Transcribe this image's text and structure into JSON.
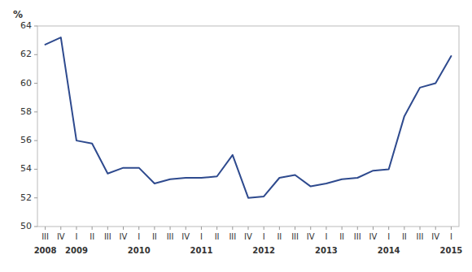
{
  "chart_data": {
    "type": "line",
    "ylabel": "%",
    "categories": [
      "III",
      "IV",
      "I",
      "II",
      "III",
      "IV",
      "I",
      "II",
      "III",
      "IV",
      "I",
      "II",
      "III",
      "IV",
      "I",
      "II",
      "III",
      "IV",
      "I",
      "II",
      "III",
      "IV",
      "I",
      "II",
      "III",
      "IV",
      "I"
    ],
    "values": [
      62.7,
      63.2,
      56.0,
      55.8,
      53.7,
      54.1,
      54.1,
      53.0,
      53.3,
      53.4,
      53.4,
      53.5,
      55.0,
      52.0,
      52.1,
      53.4,
      53.6,
      52.8,
      53.0,
      53.3,
      53.4,
      53.9,
      54.0,
      57.7,
      59.7,
      60.0,
      61.9
    ],
    "color": "#2e4a8e",
    "ylim": [
      50,
      64
    ],
    "yticks": [
      50,
      52,
      54,
      56,
      58,
      60,
      62,
      64
    ],
    "grid": false,
    "annotations": [
      {
        "text": "2008",
        "x": 0
      },
      {
        "text": "2009",
        "x": 2
      },
      {
        "text": "2010",
        "x": 6
      },
      {
        "text": "2011",
        "x": 10
      },
      {
        "text": "2012",
        "x": 14
      },
      {
        "text": "2013",
        "x": 18
      },
      {
        "text": "2014",
        "x": 22
      },
      {
        "text": "2015",
        "x": 26
      }
    ]
  }
}
